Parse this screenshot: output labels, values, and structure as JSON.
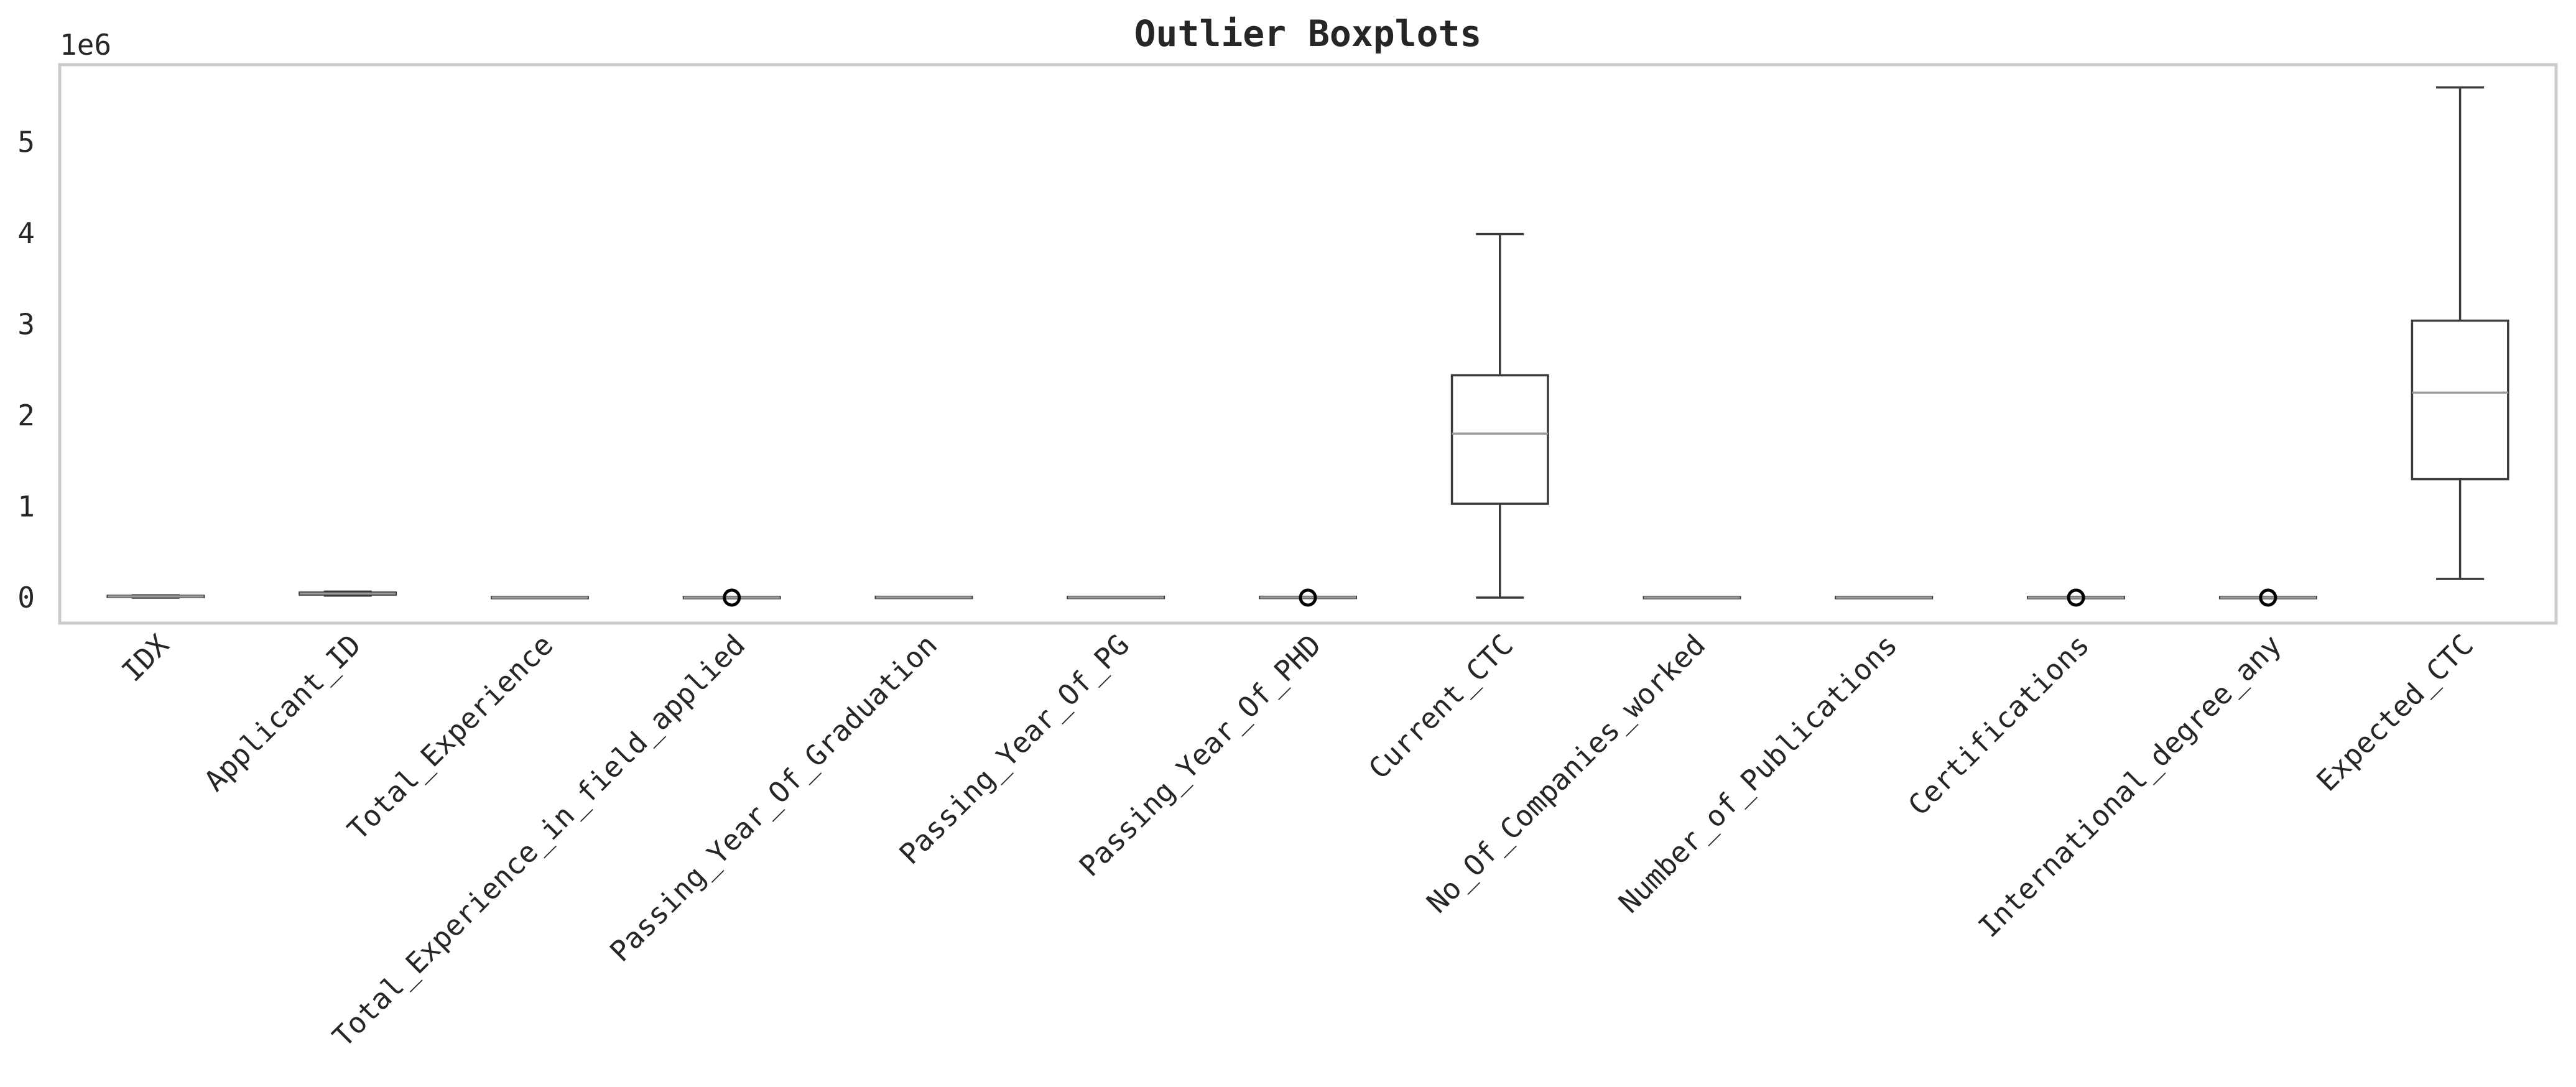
{
  "chart_data": {
    "type": "boxplot",
    "title": "Outlier Boxplots",
    "xlabel": "",
    "ylabel": "",
    "y_offset_text": "1e6",
    "y_multiplier": 1000000,
    "ylim": [
      -280000,
      5850000
    ],
    "yticks": [
      0,
      1000000,
      2000000,
      3000000,
      4000000,
      5000000
    ],
    "ytick_labels": [
      "0",
      "1",
      "2",
      "3",
      "4",
      "5"
    ],
    "grid": false,
    "categories": [
      "IDX",
      "Applicant_ID",
      "Total_Experience",
      "Total_Experience_in_field_applied",
      "Passing_Year_Of_Graduation",
      "Passing_Year_Of_PG",
      "Passing_Year_Of_PHD",
      "Current_CTC",
      "No_Of_Companies_worked",
      "Number_of_Publications",
      "Certifications",
      "International_degree_any",
      "Expected_CTC"
    ],
    "boxes": [
      {
        "min": 0,
        "q1": 6250,
        "median": 12500,
        "q3": 18750,
        "max": 25000,
        "fliers": []
      },
      {
        "min": 22000,
        "q1": 33000,
        "median": 44000,
        "q3": 55000,
        "max": 66000,
        "fliers": []
      },
      {
        "min": 0,
        "q1": 4,
        "median": 9,
        "q3": 15,
        "max": 25,
        "fliers": []
      },
      {
        "min": 0,
        "q1": 1,
        "median": 3,
        "q3": 7,
        "max": 15,
        "fliers": [
          0
        ]
      },
      {
        "min": 1986,
        "q1": 1997,
        "median": 2003,
        "q3": 2010,
        "max": 2020,
        "fliers": []
      },
      {
        "min": 1990,
        "q1": 2000,
        "median": 2006,
        "q3": 2013,
        "max": 2023,
        "fliers": []
      },
      {
        "min": 1995,
        "q1": 2004,
        "median": 2010,
        "q3": 2016,
        "max": 2023,
        "fliers": [
          0
        ]
      },
      {
        "min": 0,
        "q1": 1030000,
        "median": 1800000,
        "q3": 2440000,
        "max": 3990000,
        "fliers": []
      },
      {
        "min": 0,
        "q1": 2,
        "median": 3,
        "q3": 5,
        "max": 6,
        "fliers": []
      },
      {
        "min": 0,
        "q1": 2,
        "median": 4,
        "q3": 6,
        "max": 8,
        "fliers": []
      },
      {
        "min": 0,
        "q1": 0,
        "median": 0,
        "q3": 0,
        "max": 0,
        "fliers": [
          0
        ]
      },
      {
        "min": 0,
        "q1": 0,
        "median": 0,
        "q3": 0,
        "max": 0,
        "fliers": [
          0
        ]
      },
      {
        "min": 205000,
        "q1": 1300000,
        "median": 2250000,
        "q3": 3040000,
        "max": 5600000,
        "fliers": []
      }
    ]
  }
}
